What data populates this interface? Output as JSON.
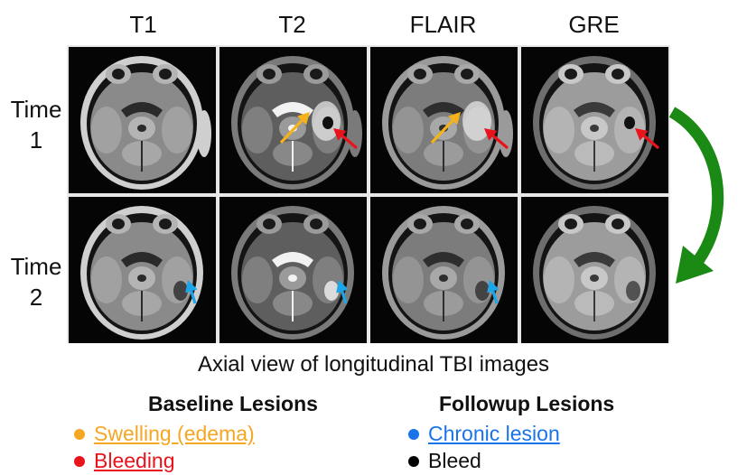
{
  "columns": [
    "T1",
    "T2",
    "FLAIR",
    "GRE"
  ],
  "rows": [
    {
      "line1": "Time",
      "line2": "1"
    },
    {
      "line1": "Time",
      "line2": "2"
    }
  ],
  "caption": "Axial view of longitudinal TBI images",
  "legend": {
    "baseline": {
      "title": "Baseline Lesions",
      "items": [
        {
          "label": "Swelling (edema)",
          "color": "#f5a623",
          "underline": true
        },
        {
          "label": "Bleeding",
          "color": "#e8131b",
          "underline": true
        }
      ]
    },
    "followup": {
      "title": "Followup Lesions",
      "items": [
        {
          "label": "Chronic lesion",
          "color": "#1a73e8",
          "underline": true
        },
        {
          "label": "Bleed",
          "color": "#000000",
          "underline": false
        }
      ]
    }
  },
  "colors": {
    "edema_arrow": "#f5b21a",
    "bleeding_arrow": "#e8131b",
    "chronic_arrow": "#1aa6e8",
    "time_arrow": "#1a8a14"
  }
}
